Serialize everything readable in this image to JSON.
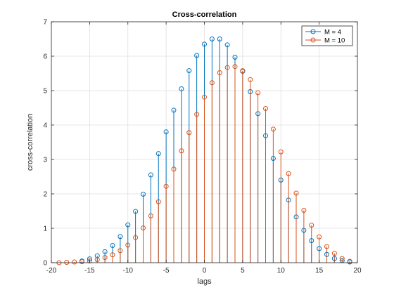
{
  "chart_data": {
    "type": "stem",
    "title": "Cross-correlation",
    "xlabel": "lags",
    "ylabel": "cross-correlation",
    "xlim": [
      -20,
      20
    ],
    "ylim": [
      0,
      7
    ],
    "xticks": [
      -20,
      -15,
      -10,
      -5,
      0,
      5,
      10,
      15,
      20
    ],
    "yticks": [
      0,
      1,
      2,
      3,
      4,
      5,
      6,
      7
    ],
    "grid": true,
    "legend_position": "top-right",
    "series": [
      {
        "name": "M = 4",
        "color": "#0072BD",
        "x": [
          -16,
          -15,
          -14,
          -13,
          -12,
          -11,
          -10,
          -9,
          -8,
          -7,
          -6,
          -5,
          -4,
          -3,
          -2,
          -1,
          0,
          1,
          2,
          3,
          4,
          5,
          6,
          7,
          8,
          9,
          10,
          11,
          12,
          13,
          14,
          15,
          16,
          17,
          18,
          19
        ],
        "y": [
          0.05,
          0.11,
          0.2,
          0.32,
          0.5,
          0.76,
          1.1,
          1.49,
          1.99,
          2.55,
          3.17,
          3.8,
          4.43,
          5.05,
          5.58,
          6.02,
          6.35,
          6.5,
          6.5,
          6.33,
          5.97,
          5.56,
          4.97,
          4.33,
          3.69,
          3.03,
          2.4,
          1.82,
          1.33,
          0.94,
          0.64,
          0.41,
          0.24,
          0.12,
          0.06,
          0.02
        ]
      },
      {
        "name": "M = 10",
        "color": "#D95319",
        "x": [
          -19,
          -18,
          -17,
          -16,
          -15,
          -14,
          -13,
          -12,
          -11,
          -10,
          -9,
          -8,
          -7,
          -6,
          -5,
          -4,
          -3,
          -2,
          -1,
          0,
          1,
          2,
          3,
          4,
          5,
          6,
          7,
          8,
          9,
          10,
          11,
          12,
          13,
          14,
          15,
          16,
          17,
          18,
          19
        ],
        "y": [
          0.0,
          0.01,
          0.02,
          0.03,
          0.05,
          0.09,
          0.15,
          0.23,
          0.35,
          0.51,
          0.73,
          1.01,
          1.36,
          1.77,
          2.22,
          2.72,
          3.25,
          3.78,
          4.31,
          4.81,
          5.23,
          5.52,
          5.67,
          5.7,
          5.58,
          5.32,
          4.94,
          4.48,
          3.88,
          3.22,
          2.59,
          2.02,
          1.52,
          1.09,
          0.75,
          0.47,
          0.27,
          0.12,
          0.04
        ]
      }
    ]
  }
}
